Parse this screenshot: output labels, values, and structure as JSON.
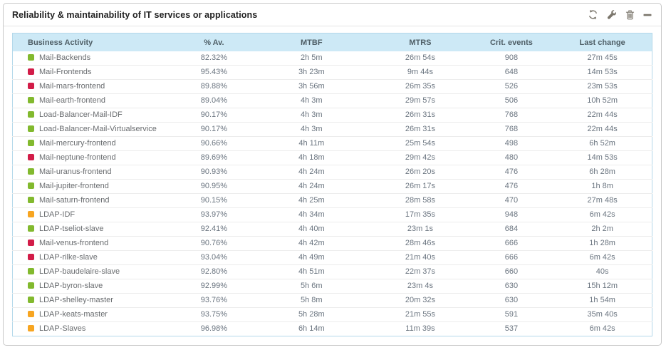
{
  "panel": {
    "title": "Reliability & maintainability of IT services or applications",
    "toolbar_icons": [
      "refresh-icon",
      "wrench-icon",
      "trash-icon",
      "minimize-icon"
    ]
  },
  "table": {
    "columns": [
      "Business Activity",
      "% Av.",
      "MTBF",
      "MTRS",
      "Crit. events",
      "Last change"
    ],
    "rows": [
      {
        "status": "green",
        "cells": [
          "Mail-Backends",
          "82.32%",
          "2h 5m",
          "26m 54s",
          "908",
          "27m 45s"
        ]
      },
      {
        "status": "red",
        "cells": [
          "Mail-Frontends",
          "95.43%",
          "3h 23m",
          "9m 44s",
          "648",
          "14m 53s"
        ]
      },
      {
        "status": "red",
        "cells": [
          "Mail-mars-frontend",
          "89.88%",
          "3h 56m",
          "26m 35s",
          "526",
          "23m 53s"
        ]
      },
      {
        "status": "green",
        "cells": [
          "Mail-earth-frontend",
          "89.04%",
          "4h 3m",
          "29m 57s",
          "506",
          "10h 52m"
        ]
      },
      {
        "status": "green",
        "cells": [
          "Load-Balancer-Mail-IDF",
          "90.17%",
          "4h 3m",
          "26m 31s",
          "768",
          "22m 44s"
        ]
      },
      {
        "status": "green",
        "cells": [
          "Load-Balancer-Mail-Virtualservice",
          "90.17%",
          "4h 3m",
          "26m 31s",
          "768",
          "22m 44s"
        ]
      },
      {
        "status": "green",
        "cells": [
          "Mail-mercury-frontend",
          "90.66%",
          "4h 11m",
          "25m 54s",
          "498",
          "6h 52m"
        ]
      },
      {
        "status": "red",
        "cells": [
          "Mail-neptune-frontend",
          "89.69%",
          "4h 18m",
          "29m 42s",
          "480",
          "14m 53s"
        ]
      },
      {
        "status": "green",
        "cells": [
          "Mail-uranus-frontend",
          "90.93%",
          "4h 24m",
          "26m 20s",
          "476",
          "6h 28m"
        ]
      },
      {
        "status": "green",
        "cells": [
          "Mail-jupiter-frontend",
          "90.95%",
          "4h 24m",
          "26m 17s",
          "476",
          "1h 8m"
        ]
      },
      {
        "status": "green",
        "cells": [
          "Mail-saturn-frontend",
          "90.15%",
          "4h 25m",
          "28m 58s",
          "470",
          "27m 48s"
        ]
      },
      {
        "status": "orange",
        "cells": [
          "LDAP-IDF",
          "93.97%",
          "4h 34m",
          "17m 35s",
          "948",
          "6m 42s"
        ]
      },
      {
        "status": "green",
        "cells": [
          "LDAP-tseliot-slave",
          "92.41%",
          "4h 40m",
          "23m 1s",
          "684",
          "2h 2m"
        ]
      },
      {
        "status": "red",
        "cells": [
          "Mail-venus-frontend",
          "90.76%",
          "4h 42m",
          "28m 46s",
          "666",
          "1h 28m"
        ]
      },
      {
        "status": "red",
        "cells": [
          "LDAP-rilke-slave",
          "93.04%",
          "4h 49m",
          "21m 40s",
          "666",
          "6m 42s"
        ]
      },
      {
        "status": "green",
        "cells": [
          "LDAP-baudelaire-slave",
          "92.80%",
          "4h 51m",
          "22m 37s",
          "660",
          "40s"
        ]
      },
      {
        "status": "green",
        "cells": [
          "LDAP-byron-slave",
          "92.99%",
          "5h 6m",
          "23m 4s",
          "630",
          "15h 12m"
        ]
      },
      {
        "status": "green",
        "cells": [
          "LDAP-shelley-master",
          "93.76%",
          "5h 8m",
          "20m 32s",
          "630",
          "1h 54m"
        ]
      },
      {
        "status": "orange",
        "cells": [
          "LDAP-keats-master",
          "93.75%",
          "5h 28m",
          "21m 55s",
          "591",
          "35m 40s"
        ]
      },
      {
        "status": "orange",
        "cells": [
          "LDAP-Slaves",
          "96.98%",
          "6h 14m",
          "11m 39s",
          "537",
          "6m 42s"
        ]
      }
    ]
  },
  "colors": {
    "status": {
      "green": "#82b92e",
      "red": "#d21c48",
      "orange": "#f7a521"
    },
    "header_bg": "#cde9f6",
    "table_border": "#b3d8ea",
    "icon_gray": "#7b766c"
  }
}
